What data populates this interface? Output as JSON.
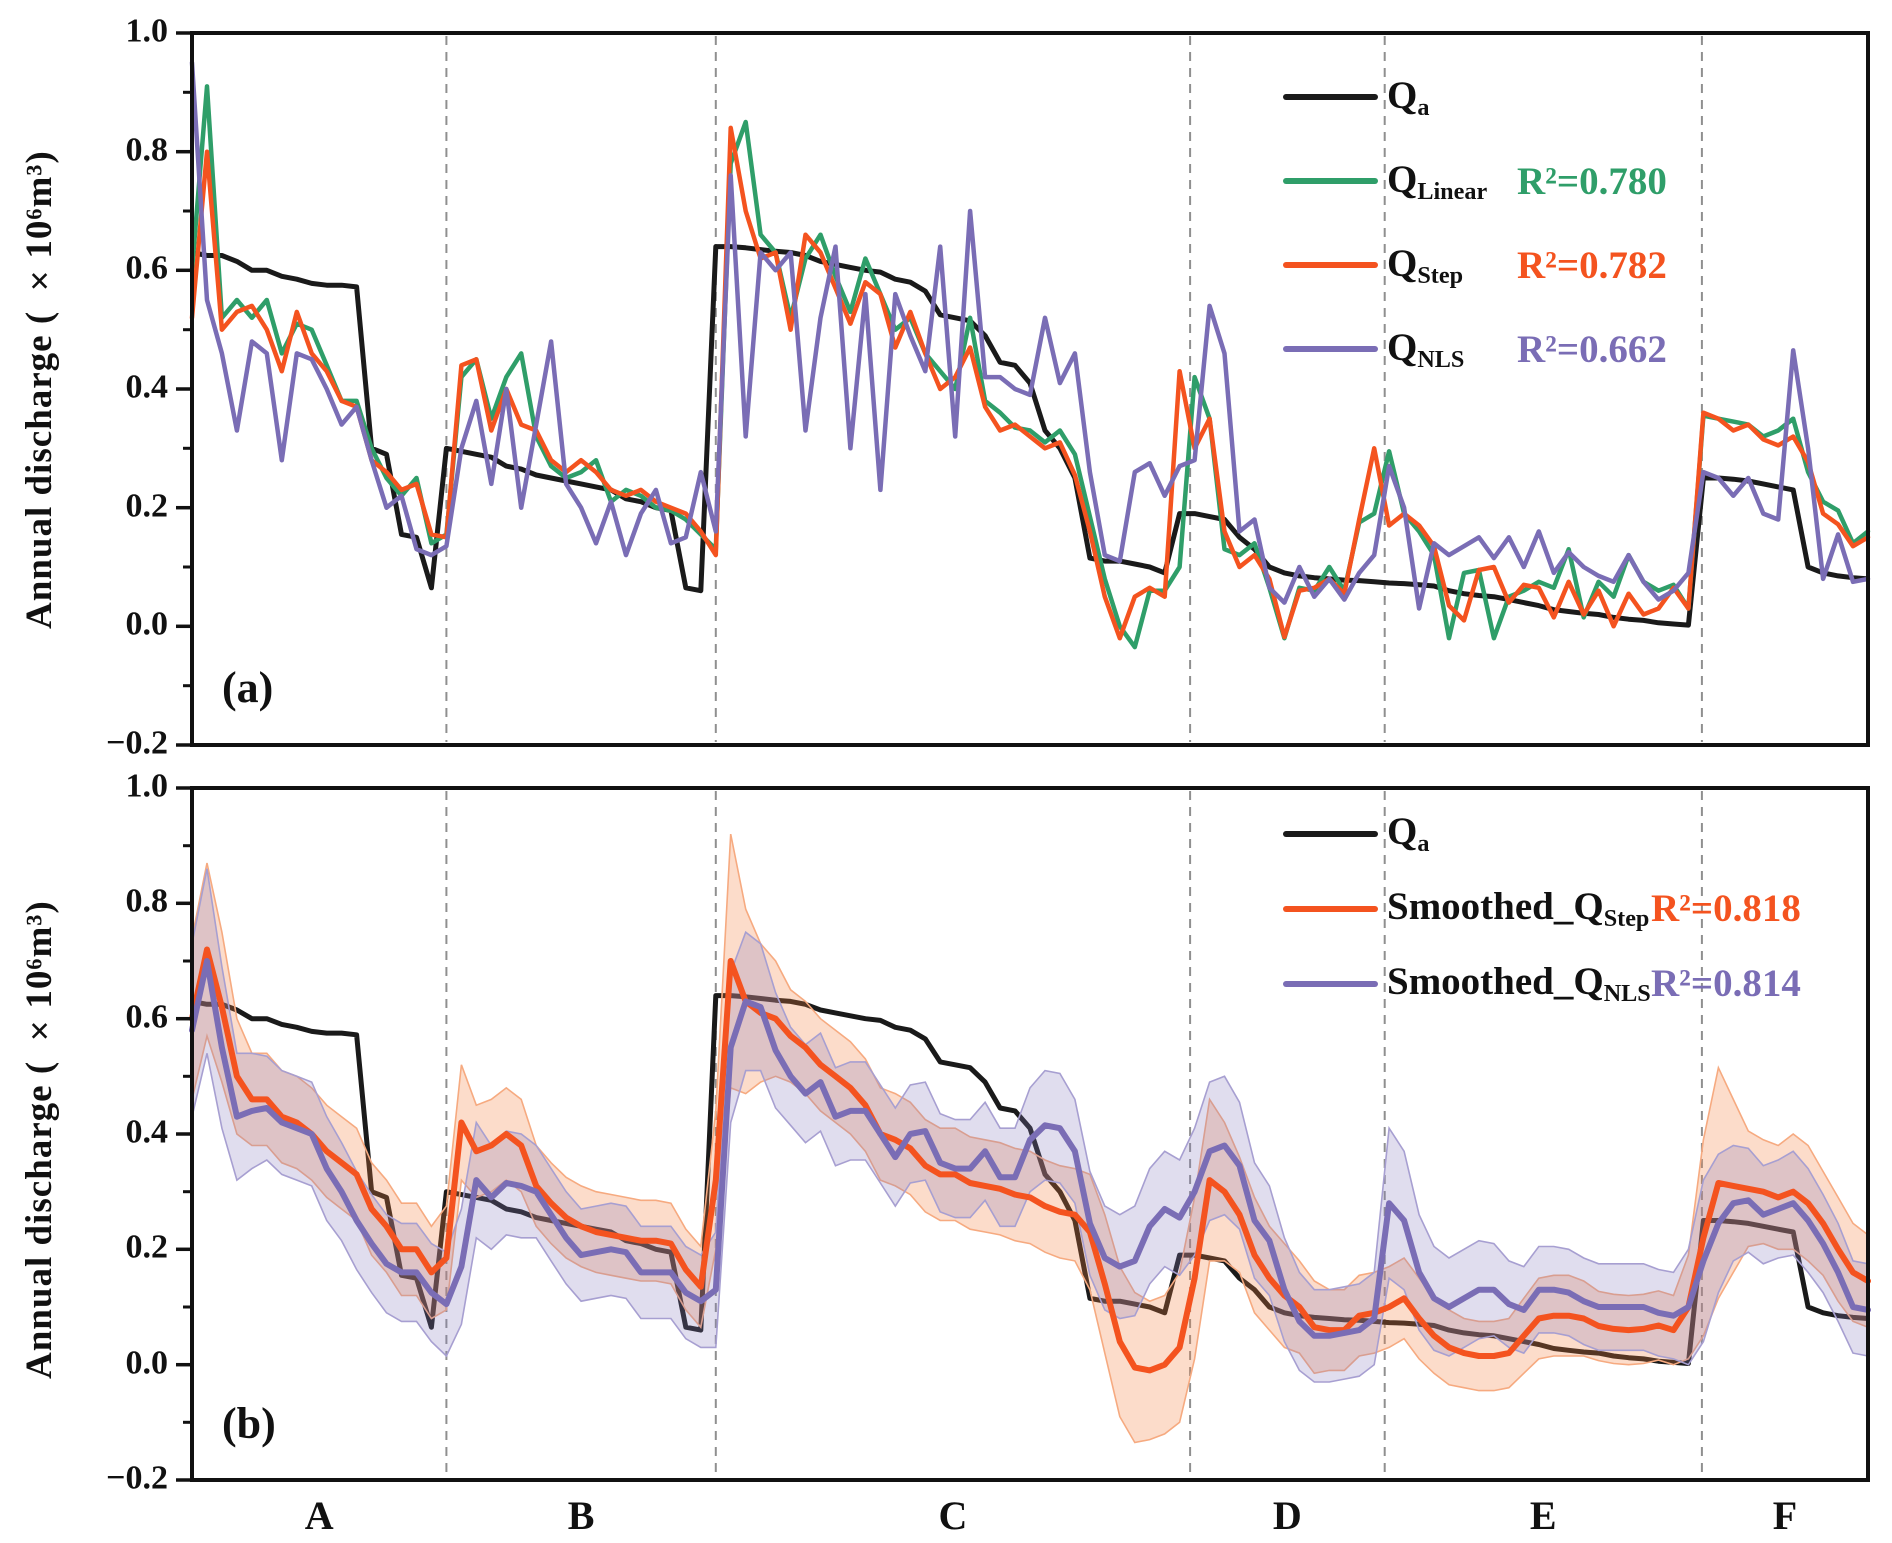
{
  "figure": {
    "y_axis_label": "Annual discharge ( ×10⁶m³)",
    "ytick_labels": [
      "1.0",
      "0.8",
      "0.6",
      "0.4",
      "0.2",
      "0.0",
      "−0.2"
    ],
    "section_labels": [
      "A",
      "B",
      "C",
      "D",
      "E",
      "F"
    ],
    "colors": {
      "qa": "#1a1a1a",
      "linear": "#2f9e69",
      "step": "#f4531f",
      "nls": "#7a6db5",
      "dashed": "#8f8f8f",
      "band_step_fill": "rgba(246,128,66,0.28)",
      "band_step_edge": "#f6aa80",
      "band_nls_fill": "rgba(136,125,188,0.26)",
      "band_nls_edge": "#a79fd1"
    }
  },
  "panel_a": {
    "letter": "(a)",
    "legend": [
      {
        "main": "Q",
        "sub": "a",
        "r2": "",
        "color": "#1a1a1a",
        "r2_color": "#1a1a1a"
      },
      {
        "main": "Q",
        "sub": "Linear",
        "r2": "R²=0.780",
        "color": "#2f9e69",
        "r2_color": "#2f9e69"
      },
      {
        "main": "Q",
        "sub": "Step",
        "r2": "R²=0.782",
        "color": "#f4531f",
        "r2_color": "#f4531f"
      },
      {
        "main": "Q",
        "sub": "NLS",
        "r2": "R²=0.662",
        "color": "#7a6db5",
        "r2_color": "#7a6db5"
      }
    ]
  },
  "panel_b": {
    "letter": "(b)",
    "legend": [
      {
        "main": "Q",
        "sub": "a",
        "r2": "",
        "color": "#1a1a1a",
        "r2_color": "#1a1a1a"
      },
      {
        "main": "Smoothed_Q",
        "sub": "Step",
        "r2": "R²=0.818",
        "color": "#f4531f",
        "r2_color": "#f4531f"
      },
      {
        "main": "Smoothed_Q",
        "sub": "NLS",
        "r2": "R²=0.814",
        "color": "#7a6db5",
        "r2_color": "#7a6db5"
      }
    ]
  },
  "chart_data": {
    "type": "line",
    "x_index_range": [
      0,
      112
    ],
    "ylim": [
      -0.2,
      1.0
    ],
    "yticks_major": [
      1.0,
      0.8,
      0.6,
      0.4,
      0.2,
      0.0,
      -0.2
    ],
    "yticks_minor": [
      0.9,
      0.7,
      0.5,
      0.3,
      0.1,
      -0.1
    ],
    "section_boundaries_index": [
      17,
      35,
      66.7,
      79.7,
      100.9
    ],
    "section_labels": [
      "A",
      "B",
      "C",
      "D",
      "E",
      "F"
    ],
    "panel_a_series": [
      {
        "name": "Qa",
        "color": "#1a1a1a",
        "width": 5,
        "values": [
          0.63,
          0.625,
          0.625,
          0.615,
          0.6,
          0.6,
          0.59,
          0.585,
          0.578,
          0.575,
          0.575,
          0.572,
          0.3,
          0.29,
          0.155,
          0.15,
          0.065,
          0.3,
          0.295,
          0.29,
          0.285,
          0.27,
          0.265,
          0.255,
          0.25,
          0.245,
          0.24,
          0.235,
          0.23,
          0.215,
          0.21,
          0.2,
          0.195,
          0.065,
          0.06,
          0.64,
          0.64,
          0.638,
          0.635,
          0.632,
          0.63,
          0.625,
          0.615,
          0.61,
          0.605,
          0.6,
          0.597,
          0.585,
          0.58,
          0.565,
          0.525,
          0.52,
          0.515,
          0.49,
          0.445,
          0.44,
          0.41,
          0.33,
          0.3,
          0.25,
          0.115,
          0.11,
          0.11,
          0.105,
          0.1,
          0.09,
          0.19,
          0.19,
          0.185,
          0.18,
          0.15,
          0.13,
          0.1,
          0.09,
          0.085,
          0.082,
          0.08,
          0.078,
          0.077,
          0.075,
          0.073,
          0.072,
          0.07,
          0.068,
          0.06,
          0.055,
          0.052,
          0.05,
          0.045,
          0.04,
          0.035,
          0.028,
          0.025,
          0.022,
          0.02,
          0.015,
          0.012,
          0.01,
          0.006,
          0.004,
          0.002,
          0.25,
          0.25,
          0.248,
          0.245,
          0.24,
          0.235,
          0.23,
          0.1,
          0.09,
          0.085,
          0.082,
          0.08
        ]
      },
      {
        "name": "Q_Linear",
        "color": "#2f9e69",
        "width": 4.5,
        "values": [
          0.6,
          0.91,
          0.52,
          0.55,
          0.52,
          0.55,
          0.46,
          0.51,
          0.5,
          0.44,
          0.38,
          0.38,
          0.3,
          0.25,
          0.22,
          0.25,
          0.14,
          0.155,
          0.42,
          0.45,
          0.35,
          0.42,
          0.46,
          0.32,
          0.27,
          0.25,
          0.26,
          0.28,
          0.21,
          0.23,
          0.22,
          0.2,
          0.195,
          0.18,
          0.155,
          0.13,
          0.78,
          0.85,
          0.66,
          0.63,
          0.52,
          0.62,
          0.66,
          0.59,
          0.53,
          0.62,
          0.56,
          0.5,
          0.52,
          0.46,
          0.43,
          0.4,
          0.52,
          0.38,
          0.36,
          0.335,
          0.33,
          0.31,
          0.33,
          0.29,
          0.185,
          0.08,
          0.0,
          -0.035,
          0.06,
          0.06,
          0.1,
          0.42,
          0.35,
          0.13,
          0.12,
          0.14,
          0.065,
          -0.02,
          0.065,
          0.06,
          0.1,
          0.06,
          0.175,
          0.19,
          0.295,
          0.19,
          0.16,
          0.12,
          -0.02,
          0.09,
          0.095,
          -0.02,
          0.05,
          0.06,
          0.075,
          0.065,
          0.13,
          0.015,
          0.075,
          0.05,
          0.12,
          0.075,
          0.06,
          0.07,
          0.03,
          0.355,
          0.35,
          0.345,
          0.34,
          0.32,
          0.33,
          0.35,
          0.26,
          0.21,
          0.195,
          0.14,
          0.16
        ]
      },
      {
        "name": "Q_Step",
        "color": "#f4531f",
        "width": 4.5,
        "values": [
          0.52,
          0.8,
          0.5,
          0.53,
          0.54,
          0.5,
          0.43,
          0.53,
          0.46,
          0.43,
          0.38,
          0.37,
          0.28,
          0.26,
          0.23,
          0.24,
          0.155,
          0.15,
          0.44,
          0.45,
          0.33,
          0.4,
          0.34,
          0.33,
          0.28,
          0.26,
          0.28,
          0.26,
          0.23,
          0.22,
          0.23,
          0.21,
          0.2,
          0.19,
          0.16,
          0.12,
          0.84,
          0.7,
          0.62,
          0.63,
          0.5,
          0.66,
          0.63,
          0.57,
          0.51,
          0.58,
          0.56,
          0.47,
          0.53,
          0.46,
          0.4,
          0.42,
          0.47,
          0.37,
          0.33,
          0.34,
          0.32,
          0.3,
          0.31,
          0.255,
          0.16,
          0.05,
          -0.02,
          0.05,
          0.065,
          0.05,
          0.43,
          0.3,
          0.35,
          0.16,
          0.1,
          0.12,
          0.08,
          -0.018,
          0.06,
          0.065,
          0.08,
          0.055,
          0.18,
          0.3,
          0.17,
          0.19,
          0.17,
          0.135,
          0.035,
          0.01,
          0.095,
          0.1,
          0.04,
          0.07,
          0.065,
          0.015,
          0.075,
          0.02,
          0.06,
          0.0,
          0.055,
          0.02,
          0.03,
          0.065,
          0.03,
          0.36,
          0.35,
          0.33,
          0.34,
          0.315,
          0.305,
          0.32,
          0.277,
          0.19,
          0.172,
          0.135,
          0.15
        ]
      },
      {
        "name": "Q_NLS",
        "color": "#7a6db5",
        "width": 4.5,
        "values": [
          0.95,
          0.55,
          0.46,
          0.33,
          0.48,
          0.46,
          0.28,
          0.46,
          0.45,
          0.4,
          0.34,
          0.37,
          0.28,
          0.2,
          0.22,
          0.13,
          0.12,
          0.135,
          0.3,
          0.38,
          0.24,
          0.4,
          0.2,
          0.34,
          0.48,
          0.24,
          0.2,
          0.14,
          0.21,
          0.12,
          0.19,
          0.23,
          0.14,
          0.15,
          0.26,
          0.16,
          0.76,
          0.32,
          0.63,
          0.6,
          0.63,
          0.33,
          0.52,
          0.64,
          0.3,
          0.56,
          0.23,
          0.56,
          0.49,
          0.43,
          0.64,
          0.32,
          0.7,
          0.42,
          0.42,
          0.4,
          0.39,
          0.52,
          0.41,
          0.46,
          0.26,
          0.12,
          0.11,
          0.26,
          0.275,
          0.22,
          0.27,
          0.28,
          0.54,
          0.46,
          0.16,
          0.18,
          0.065,
          0.04,
          0.1,
          0.05,
          0.08,
          0.045,
          0.09,
          0.12,
          0.27,
          0.2,
          0.03,
          0.14,
          0.12,
          0.135,
          0.15,
          0.115,
          0.15,
          0.1,
          0.16,
          0.09,
          0.125,
          0.1,
          0.085,
          0.075,
          0.12,
          0.075,
          0.045,
          0.06,
          0.09,
          0.26,
          0.25,
          0.22,
          0.25,
          0.19,
          0.18,
          0.465,
          0.3,
          0.08,
          0.155,
          0.075,
          0.08
        ]
      }
    ],
    "panel_b_series": [
      {
        "name": "Qa",
        "color": "#1a1a1a",
        "width": 5,
        "values": [
          0.63,
          0.625,
          0.625,
          0.615,
          0.6,
          0.6,
          0.59,
          0.585,
          0.578,
          0.575,
          0.575,
          0.572,
          0.3,
          0.29,
          0.155,
          0.15,
          0.065,
          0.3,
          0.295,
          0.29,
          0.285,
          0.27,
          0.265,
          0.255,
          0.25,
          0.245,
          0.24,
          0.235,
          0.23,
          0.215,
          0.21,
          0.2,
          0.195,
          0.065,
          0.06,
          0.64,
          0.64,
          0.638,
          0.635,
          0.632,
          0.63,
          0.625,
          0.615,
          0.61,
          0.605,
          0.6,
          0.597,
          0.585,
          0.58,
          0.565,
          0.525,
          0.52,
          0.515,
          0.49,
          0.445,
          0.44,
          0.41,
          0.33,
          0.3,
          0.25,
          0.115,
          0.11,
          0.11,
          0.105,
          0.1,
          0.09,
          0.19,
          0.19,
          0.185,
          0.18,
          0.15,
          0.13,
          0.1,
          0.09,
          0.085,
          0.082,
          0.08,
          0.078,
          0.077,
          0.075,
          0.073,
          0.072,
          0.07,
          0.068,
          0.06,
          0.055,
          0.052,
          0.05,
          0.045,
          0.04,
          0.035,
          0.028,
          0.025,
          0.022,
          0.02,
          0.015,
          0.012,
          0.01,
          0.006,
          0.004,
          0.002,
          0.25,
          0.25,
          0.248,
          0.245,
          0.24,
          0.235,
          0.23,
          0.1,
          0.09,
          0.085,
          0.082,
          0.08
        ]
      },
      {
        "name": "Smoothed_Q_Step",
        "color": "#f4531f",
        "width": 6,
        "band_fill": "rgba(246,128,66,0.28)",
        "band_edge": "#f6aa80",
        "values": [
          0.6,
          0.72,
          0.62,
          0.5,
          0.46,
          0.46,
          0.43,
          0.42,
          0.4,
          0.37,
          0.35,
          0.33,
          0.27,
          0.24,
          0.2,
          0.2,
          0.16,
          0.185,
          0.42,
          0.37,
          0.38,
          0.4,
          0.38,
          0.31,
          0.28,
          0.255,
          0.24,
          0.23,
          0.225,
          0.22,
          0.215,
          0.215,
          0.21,
          0.165,
          0.135,
          0.32,
          0.7,
          0.63,
          0.61,
          0.6,
          0.57,
          0.55,
          0.52,
          0.5,
          0.48,
          0.45,
          0.4,
          0.39,
          0.375,
          0.345,
          0.33,
          0.33,
          0.315,
          0.31,
          0.305,
          0.295,
          0.29,
          0.275,
          0.265,
          0.26,
          0.23,
          0.14,
          0.04,
          -0.005,
          -0.01,
          0.0,
          0.03,
          0.15,
          0.32,
          0.3,
          0.26,
          0.19,
          0.15,
          0.12,
          0.1,
          0.065,
          0.06,
          0.06,
          0.085,
          0.09,
          0.1,
          0.115,
          0.08,
          0.05,
          0.03,
          0.02,
          0.015,
          0.015,
          0.02,
          0.05,
          0.08,
          0.085,
          0.085,
          0.08,
          0.067,
          0.062,
          0.06,
          0.062,
          0.068,
          0.06,
          0.1,
          0.22,
          0.315,
          0.31,
          0.305,
          0.3,
          0.29,
          0.3,
          0.28,
          0.245,
          0.2,
          0.16,
          0.145
        ],
        "band_halfwidth": [
          0.14,
          0.15,
          0.13,
          0.1,
          0.08,
          0.08,
          0.08,
          0.08,
          0.08,
          0.08,
          0.08,
          0.08,
          0.08,
          0.08,
          0.08,
          0.08,
          0.08,
          0.09,
          0.1,
          0.08,
          0.08,
          0.08,
          0.08,
          0.07,
          0.07,
          0.07,
          0.07,
          0.07,
          0.07,
          0.07,
          0.07,
          0.07,
          0.07,
          0.07,
          0.07,
          0.12,
          0.22,
          0.16,
          0.12,
          0.1,
          0.08,
          0.08,
          0.08,
          0.08,
          0.08,
          0.08,
          0.08,
          0.08,
          0.08,
          0.08,
          0.08,
          0.08,
          0.08,
          0.08,
          0.08,
          0.08,
          0.08,
          0.08,
          0.08,
          0.08,
          0.1,
          0.12,
          0.13,
          0.13,
          0.12,
          0.12,
          0.13,
          0.14,
          0.14,
          0.12,
          0.1,
          0.1,
          0.09,
          0.09,
          0.08,
          0.08,
          0.07,
          0.07,
          0.07,
          0.07,
          0.07,
          0.07,
          0.07,
          0.065,
          0.065,
          0.06,
          0.06,
          0.06,
          0.06,
          0.065,
          0.07,
          0.07,
          0.07,
          0.065,
          0.06,
          0.06,
          0.06,
          0.06,
          0.06,
          0.06,
          0.09,
          0.17,
          0.2,
          0.15,
          0.1,
          0.09,
          0.09,
          0.1,
          0.1,
          0.09,
          0.09,
          0.085,
          0.08
        ]
      },
      {
        "name": "Smoothed_Q_NLS",
        "color": "#7a6db5",
        "width": 6,
        "band_fill": "rgba(136,125,188,0.26)",
        "band_edge": "#a79fd1",
        "values": [
          0.58,
          0.7,
          0.55,
          0.43,
          0.44,
          0.445,
          0.42,
          0.41,
          0.4,
          0.34,
          0.3,
          0.25,
          0.21,
          0.175,
          0.16,
          0.16,
          0.125,
          0.105,
          0.17,
          0.32,
          0.29,
          0.315,
          0.31,
          0.3,
          0.26,
          0.22,
          0.19,
          0.195,
          0.2,
          0.195,
          0.16,
          0.16,
          0.16,
          0.125,
          0.11,
          0.13,
          0.55,
          0.63,
          0.62,
          0.545,
          0.5,
          0.47,
          0.49,
          0.43,
          0.44,
          0.44,
          0.4,
          0.36,
          0.4,
          0.405,
          0.35,
          0.34,
          0.34,
          0.37,
          0.325,
          0.325,
          0.39,
          0.415,
          0.41,
          0.37,
          0.245,
          0.185,
          0.17,
          0.18,
          0.24,
          0.27,
          0.255,
          0.3,
          0.37,
          0.38,
          0.345,
          0.25,
          0.215,
          0.13,
          0.075,
          0.05,
          0.05,
          0.055,
          0.06,
          0.08,
          0.28,
          0.25,
          0.16,
          0.115,
          0.1,
          0.115,
          0.13,
          0.13,
          0.105,
          0.095,
          0.13,
          0.13,
          0.125,
          0.11,
          0.1,
          0.1,
          0.1,
          0.1,
          0.09,
          0.085,
          0.1,
          0.18,
          0.245,
          0.28,
          0.285,
          0.26,
          0.27,
          0.28,
          0.25,
          0.21,
          0.16,
          0.1,
          0.095
        ],
        "band_halfwidth": [
          0.15,
          0.16,
          0.14,
          0.11,
          0.1,
          0.09,
          0.09,
          0.09,
          0.09,
          0.09,
          0.085,
          0.085,
          0.085,
          0.085,
          0.085,
          0.085,
          0.085,
          0.09,
          0.1,
          0.1,
          0.09,
          0.09,
          0.09,
          0.08,
          0.08,
          0.08,
          0.08,
          0.08,
          0.08,
          0.08,
          0.08,
          0.08,
          0.08,
          0.08,
          0.08,
          0.1,
          0.13,
          0.12,
          0.11,
          0.1,
          0.085,
          0.085,
          0.085,
          0.085,
          0.085,
          0.085,
          0.085,
          0.085,
          0.085,
          0.085,
          0.085,
          0.085,
          0.085,
          0.085,
          0.085,
          0.085,
          0.09,
          0.095,
          0.095,
          0.09,
          0.09,
          0.09,
          0.09,
          0.095,
          0.1,
          0.1,
          0.1,
          0.11,
          0.12,
          0.12,
          0.11,
          0.1,
          0.095,
          0.09,
          0.085,
          0.08,
          0.08,
          0.08,
          0.08,
          0.08,
          0.13,
          0.12,
          0.1,
          0.09,
          0.085,
          0.085,
          0.085,
          0.08,
          0.075,
          0.075,
          0.075,
          0.075,
          0.075,
          0.075,
          0.075,
          0.075,
          0.075,
          0.075,
          0.075,
          0.075,
          0.1,
          0.14,
          0.12,
          0.1,
          0.09,
          0.085,
          0.085,
          0.09,
          0.09,
          0.085,
          0.085,
          0.08,
          0.08
        ]
      }
    ]
  }
}
